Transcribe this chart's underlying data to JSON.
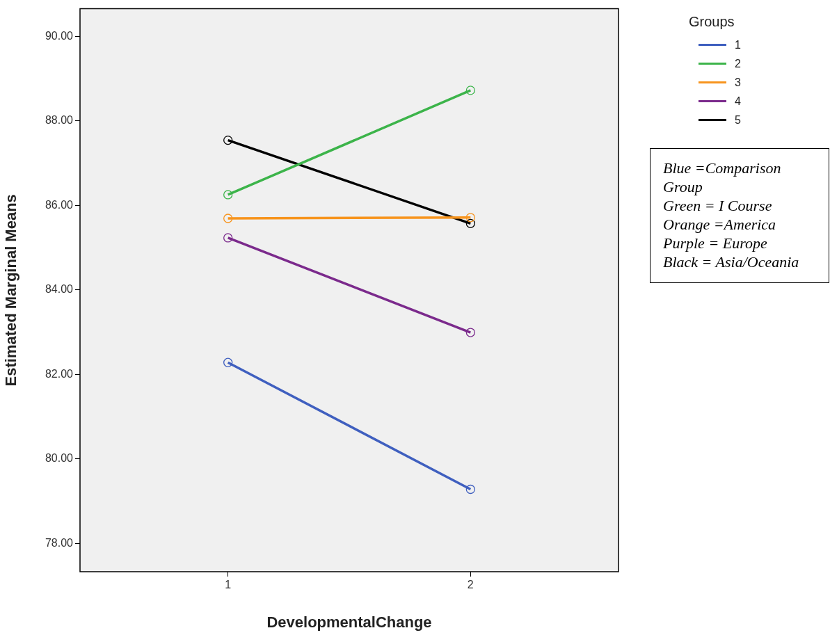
{
  "chart_data": {
    "type": "line",
    "xlabel": "DevelopmentalChange",
    "ylabel": "Estimated Marginal Means",
    "legend_title": "Groups",
    "categories": [
      "1",
      "2"
    ],
    "ylim": [
      77.33,
      90.65
    ],
    "yticks": [
      {
        "value": 78,
        "label": "78.00"
      },
      {
        "value": 80,
        "label": "80.00"
      },
      {
        "value": 82,
        "label": "82.00"
      },
      {
        "value": 84,
        "label": "84.00"
      },
      {
        "value": 86,
        "label": "86.00"
      },
      {
        "value": 88,
        "label": "88.00"
      },
      {
        "value": 90,
        "label": "90.00"
      }
    ],
    "series": [
      {
        "name": "1",
        "color": "#3f5fbf",
        "values": [
          82.28,
          79.28
        ]
      },
      {
        "name": "2",
        "color": "#3cb44a",
        "values": [
          86.25,
          88.72
        ]
      },
      {
        "name": "3",
        "color": "#f7941d",
        "values": [
          85.69,
          85.71
        ]
      },
      {
        "name": "4",
        "color": "#7b2a8c",
        "values": [
          85.23,
          82.99
        ]
      },
      {
        "name": "5",
        "color": "#000000",
        "values": [
          87.54,
          85.57
        ]
      }
    ],
    "marker": "circle",
    "line_style": "solid",
    "grid": false,
    "legend": "top right",
    "annotations": [
      "Blue =Comparison Group\nGreen = I Course\nOrange =America\nPurple = Europe\nBlack = Asia/Oceania"
    ]
  }
}
